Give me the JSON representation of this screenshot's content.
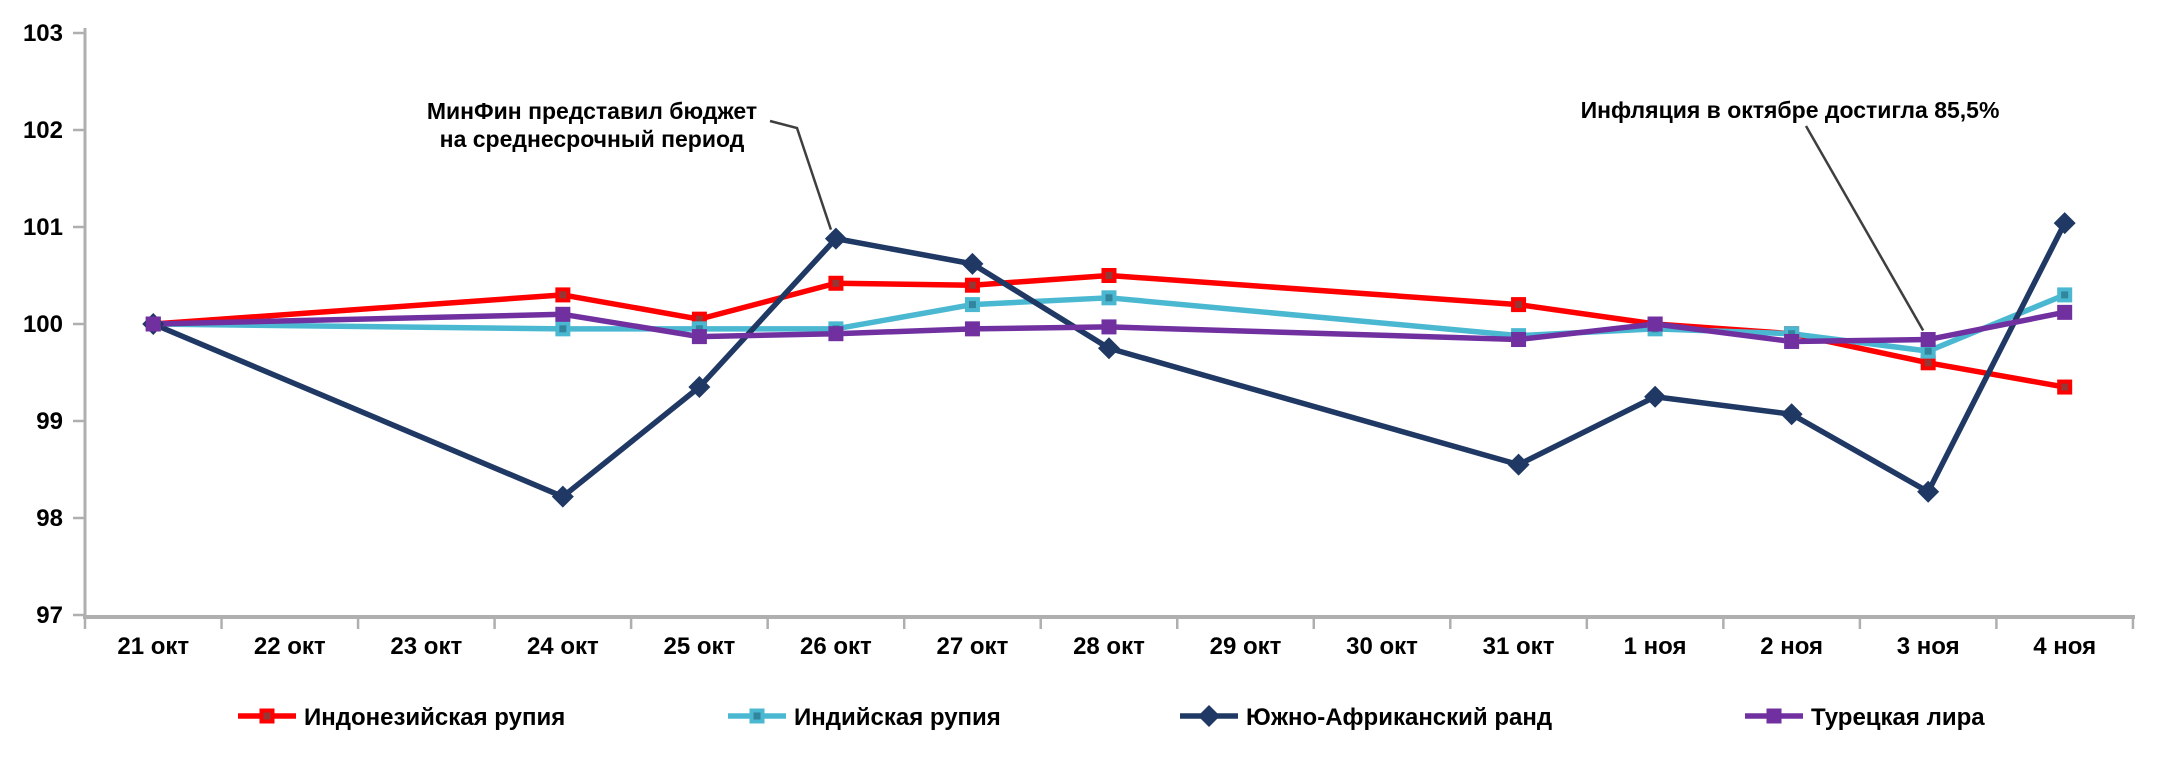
{
  "chart_data": {
    "type": "line",
    "title": "",
    "grid": false,
    "x_categories": [
      "21 окт",
      "22 окт",
      "23 окт",
      "24 окт",
      "25 окт",
      "26 окт",
      "27 окт",
      "28 окт",
      "29 окт",
      "30 окт",
      "31 окт",
      "1 ноя",
      "2 ноя",
      "3 ноя",
      "4 ноя"
    ],
    "y_axis": {
      "min": 97,
      "max": 103,
      "step": 1,
      "tick_labels": [
        "97",
        "98",
        "99",
        "100",
        "101",
        "102",
        "103"
      ]
    },
    "axis_color": "#AFAFAF",
    "text_color": "#000000",
    "pointer_color": "#3F3F3F",
    "series": [
      {
        "id": "indonesian-rupiah",
        "name": "Индонезийская рупия",
        "color": "#FE0000",
        "marker": "square",
        "marker_inner": "#953735",
        "values": [
          100,
          null,
          null,
          100.3,
          100.05,
          100.42,
          100.4,
          100.5,
          null,
          null,
          100.2,
          100.0,
          99.9,
          99.6,
          99.35
        ]
      },
      {
        "id": "indian-rupee",
        "name": "Индийская рупия",
        "color": "#4BB8D2",
        "marker": "square",
        "marker_inner": "#31859C",
        "values": [
          100,
          null,
          null,
          99.95,
          99.95,
          99.95,
          100.2,
          100.27,
          null,
          null,
          99.88,
          99.95,
          99.9,
          99.72,
          100.3
        ]
      },
      {
        "id": "south-african-rand",
        "name": "Южно-Африканский ранд",
        "color": "#1F3864",
        "marker": "diamond",
        "marker_inner": null,
        "values": [
          100,
          null,
          null,
          98.22,
          99.35,
          100.88,
          100.62,
          99.75,
          null,
          null,
          98.55,
          99.25,
          99.07,
          98.27,
          101.04
        ]
      },
      {
        "id": "turkish-lira",
        "name": "Турецкая лира",
        "color": "#7030A0",
        "marker": "square",
        "marker_inner": null,
        "values": [
          100,
          null,
          null,
          100.1,
          99.87,
          99.9,
          99.95,
          99.97,
          null,
          null,
          99.84,
          100.0,
          99.82,
          99.84,
          100.12
        ]
      }
    ],
    "annotations": [
      {
        "id": "minfin",
        "text_lines": [
          "МинФин представил бюджет",
          "на среднесрочный период"
        ],
        "target_series": "south-african-rand",
        "target_index": 5
      },
      {
        "id": "inflation",
        "text_lines": [
          "Инфляция в октябре достигла 85,5%"
        ],
        "target_series": "turkish-lira",
        "target_index": 13
      }
    ],
    "legend_position": "bottom"
  }
}
